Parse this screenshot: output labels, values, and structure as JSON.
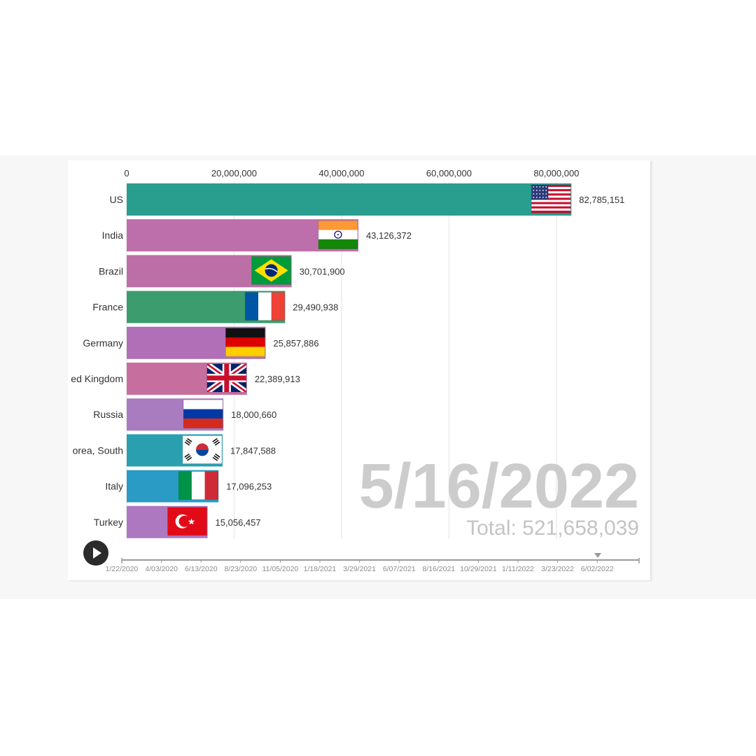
{
  "chart_data": {
    "type": "bar",
    "orientation": "horizontal",
    "title": "",
    "xlabel": "",
    "ylabel": "",
    "xlim": [
      0,
      95000000
    ],
    "x_ticks": [
      0,
      20000000,
      40000000,
      60000000,
      80000000
    ],
    "x_tick_labels": [
      "0",
      "20,000,000",
      "40,000,000",
      "60,000,000",
      "80,000,000"
    ],
    "grid": true,
    "legend": "none",
    "categories": [
      "US",
      "India",
      "Brazil",
      "France",
      "Germany",
      "ed Kingdom",
      "Russia",
      "orea, South",
      "Italy",
      "Turkey"
    ],
    "values": [
      82785151,
      43126372,
      30701900,
      29490938,
      25857886,
      22389913,
      18000660,
      17847588,
      17096253,
      15056457
    ],
    "value_labels": [
      "82,785,151",
      "43,126,372",
      "30,701,900",
      "29,490,938",
      "25,857,886",
      "22,389,913",
      "18,000,660",
      "17,847,588",
      "17,096,253",
      "15,056,457"
    ],
    "colors": [
      "#299e8f",
      "#bc6faa",
      "#bc6fa6",
      "#3c9c6e",
      "#b06fb7",
      "#c66f9e",
      "#a87cbf",
      "#2a9fb0",
      "#2a9bc4",
      "#ae78c0"
    ],
    "flag_icons": [
      "us-flag-icon",
      "india-flag-icon",
      "brazil-flag-icon",
      "france-flag-icon",
      "germany-flag-icon",
      "uk-flag-icon",
      "russia-flag-icon",
      "south-korea-flag-icon",
      "italy-flag-icon",
      "turkey-flag-icon"
    ],
    "current_date": "5/16/2022",
    "total_label": "Total: 521,658,039",
    "timeline": {
      "labels": [
        "1/22/2020",
        "4/03/2020",
        "6/13/2020",
        "8/23/2020",
        "11/05/2020",
        "1/18/2021",
        "3/29/2021",
        "6/07/2021",
        "8/16/2021",
        "10/29/2021",
        "1/11/2022",
        "3/23/2022",
        "6/02/2022"
      ],
      "current": "5/16/2022"
    }
  }
}
